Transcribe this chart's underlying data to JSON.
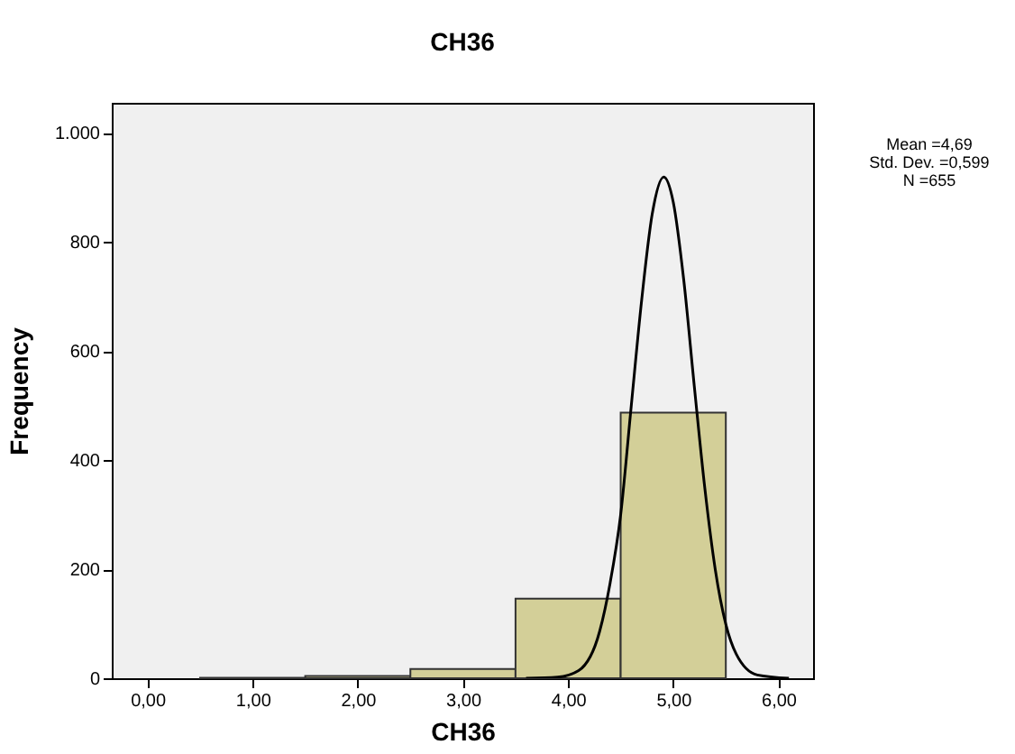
{
  "chart_data": {
    "type": "histogram",
    "title": "CH36",
    "xlabel": "CH36",
    "ylabel": "Frequency",
    "annotations": [
      "Mean =4,69",
      "Std. Dev. =0,599",
      "N =655"
    ],
    "xlim": [
      -0.34,
      6.33
    ],
    "ylim": [
      0,
      1055
    ],
    "xticks": [
      {
        "value": 0,
        "label": "0,00"
      },
      {
        "value": 1,
        "label": "1,00"
      },
      {
        "value": 2,
        "label": "2,00"
      },
      {
        "value": 3,
        "label": "3,00"
      },
      {
        "value": 4,
        "label": "4,00"
      },
      {
        "value": 5,
        "label": "5,00"
      },
      {
        "value": 6,
        "label": "6,00"
      }
    ],
    "yticks": [
      0,
      200,
      400,
      600,
      800,
      {
        "value": 1000,
        "label": "1.000"
      }
    ],
    "bins": [
      0.5,
      1.5,
      2.5,
      3.5,
      4.5,
      5.5
    ],
    "values": [
      1,
      4,
      17,
      146,
      487
    ],
    "color": "#d3cf98",
    "series": [
      {
        "type": "line",
        "color": "#000000",
        "x": [
          3.6,
          3.9,
          4.1,
          4.3,
          4.4,
          4.5,
          4.6,
          4.7,
          4.8,
          4.91,
          5.0,
          5.1,
          5.2,
          5.3,
          5.4,
          5.5,
          5.6,
          5.8,
          6.1
        ],
        "values": [
          0,
          2,
          14,
          86,
          175,
          300,
          498,
          694,
          851,
          919,
          873,
          730,
          536,
          349,
          199,
          99,
          44,
          6,
          0
        ]
      }
    ]
  }
}
